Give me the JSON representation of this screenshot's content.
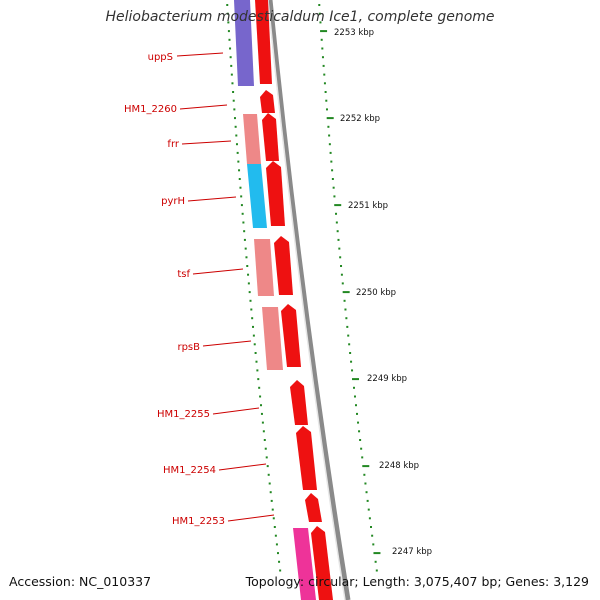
{
  "title": "Heliobacterium modesticaldum Ice1, complete genome",
  "footer": {
    "accession": "Accession: NC_010337",
    "topology": "Topology: circular; Length: 3,075,407 bp; Genes: 3,129"
  },
  "colors": {
    "backbone": "#7a7a7a",
    "gene_red": "#ee1111",
    "gene_salmon": "#ee8888",
    "gene_purple": "#7766cc",
    "gene_cyan": "#22bbee",
    "gene_magenta": "#ee3399",
    "label_red": "#cc0000",
    "tick_green": "#228822"
  },
  "gene_labels": [
    "uppS",
    "HM1_2260",
    "frr",
    "pyrH",
    "tsf",
    "rpsB",
    "HM1_2255",
    "HM1_2254",
    "HM1_2253"
  ],
  "kbp_labels": [
    "2253 kbp",
    "2252 kbp",
    "2251 kbp",
    "2250 kbp",
    "2249 kbp",
    "2248 kbp",
    "2247 kbp"
  ]
}
